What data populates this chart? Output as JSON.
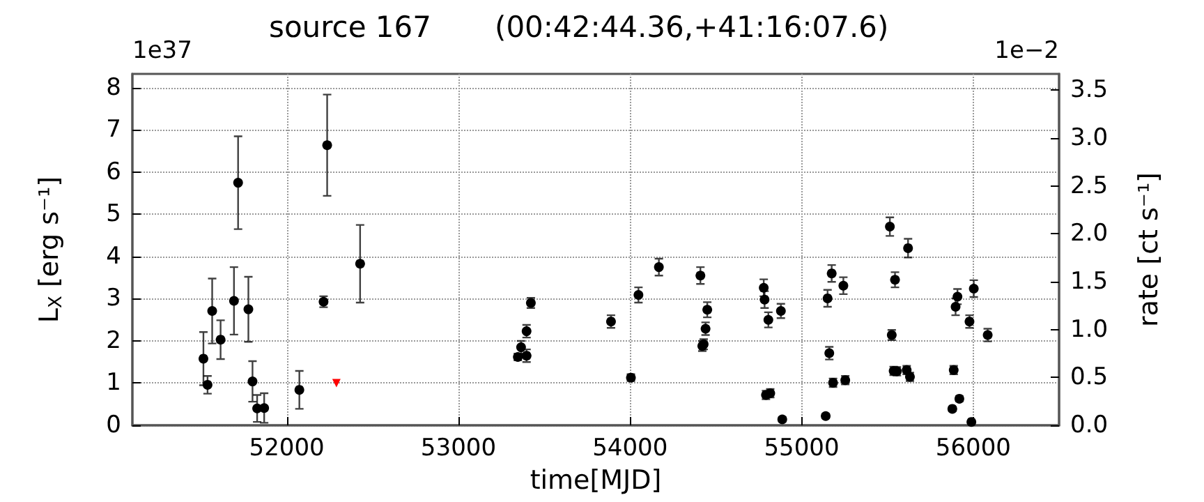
{
  "chart_data": {
    "type": "scatter",
    "title": "source 167",
    "subtitle": "(00:42:44.36,+41:16:07.6)",
    "xlabel": "time[MJD]",
    "ylabel": "L$_{X}$ [erg s⁻¹]",
    "y2label": "rate [ct s⁻¹]",
    "annotations": [
      "1e37",
      "1e−2"
    ],
    "series": [
      {
        "color": "#000000",
        "marker": "circle",
        "x": [
          51514,
          51538,
          51565,
          51614,
          51692,
          51716,
          51776,
          51800,
          51827,
          51868,
          52073,
          52214,
          52235,
          52427,
          53346,
          53365,
          53397,
          53397,
          53422,
          53889,
          54005,
          54049,
          54168,
          54410,
          54421,
          54429,
          54440,
          54450,
          54779,
          54784,
          54806,
          54792,
          54817,
          54879,
          54887,
          55140,
          55151,
          55161,
          55175,
          55183,
          55243,
          55254,
          55514,
          55525,
          55536,
          55555,
          55544,
          55612,
          55620,
          55631,
          55878,
          55886,
          55897,
          55908,
          55919,
          55978,
          55989,
          56003,
          56084
        ],
        "values": [
          1.58,
          0.96,
          2.71,
          2.03,
          2.95,
          5.75,
          2.75,
          1.04,
          0.4,
          0.41,
          0.84,
          2.93,
          6.64,
          3.83,
          1.62,
          1.85,
          1.65,
          2.23,
          2.9,
          2.46,
          1.13,
          3.09,
          3.75,
          3.55,
          1.88,
          1.92,
          2.29,
          2.74,
          3.26,
          2.98,
          2.5,
          0.72,
          0.76,
          2.71,
          0.14,
          0.22,
          3.01,
          1.71,
          3.6,
          1.01,
          3.31,
          1.07,
          4.71,
          2.14,
          1.29,
          1.28,
          3.45,
          1.31,
          4.2,
          1.15,
          0.39,
          1.31,
          2.81,
          3.05,
          0.63,
          2.46,
          0.08,
          3.24,
          2.14
        ],
        "errors": [
          0.63,
          0.21,
          0.77,
          0.46,
          0.8,
          1.1,
          0.77,
          0.48,
          0.32,
          0.35,
          0.45,
          0.13,
          1.2,
          0.92,
          0.08,
          0.15,
          0.15,
          0.15,
          0.12,
          0.15,
          0.08,
          0.18,
          0.2,
          0.2,
          0.12,
          0.12,
          0.15,
          0.18,
          0.2,
          0.2,
          0.18,
          0.1,
          0.1,
          0.17,
          0.05,
          0.05,
          0.2,
          0.15,
          0.2,
          0.1,
          0.2,
          0.1,
          0.22,
          0.12,
          0.1,
          0.1,
          0.18,
          0.1,
          0.22,
          0.1,
          0.05,
          0.1,
          0.2,
          0.18,
          0.06,
          0.15,
          null,
          0.2,
          0.15
        ]
      },
      {
        "color": "#ff0000",
        "marker": "triangle",
        "x": [
          52289
        ],
        "values": [
          1.0
        ]
      }
    ],
    "xlim": [
      51100,
      56500
    ],
    "xticks": [
      52000,
      53000,
      54000,
      55000,
      56000
    ],
    "ylim": [
      0,
      8.33
    ],
    "yticks": [
      0,
      1,
      2,
      3,
      4,
      5,
      6,
      7,
      8
    ],
    "y2lim": [
      0,
      3.67
    ],
    "y2ticks": [
      {
        "value": 0,
        "label": "0.0"
      },
      {
        "value": 0.5,
        "label": "0.5"
      },
      {
        "value": 1,
        "label": "1.0"
      },
      {
        "value": 1.5,
        "label": "1.5"
      },
      {
        "value": 2,
        "label": "2.0"
      },
      {
        "value": 2.5,
        "label": "2.5"
      },
      {
        "value": 3,
        "label": "3.0"
      },
      {
        "value": 3.5,
        "label": "3.5"
      }
    ],
    "grid": true,
    "legend": false
  }
}
